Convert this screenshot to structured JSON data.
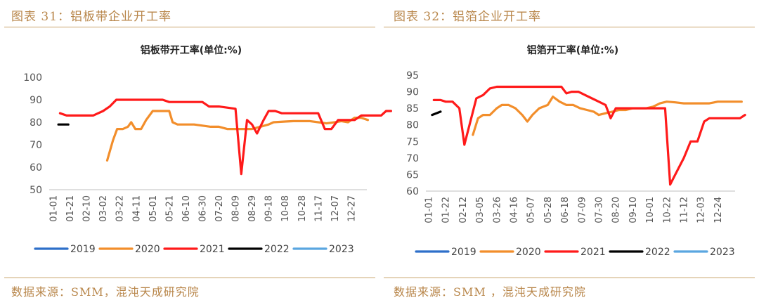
{
  "colors": {
    "2019": "#2e6fc9",
    "2020": "#f28e2b",
    "2021": "#ff1a1a",
    "2022": "#000000",
    "2023": "#5aa6e0",
    "accent": "#b8864a"
  },
  "panels": [
    {
      "figure_title": "图表 31：铝板带企业开工率",
      "source": "数据来源：SMM，混沌天成研究院"
    },
    {
      "figure_title": "图表 32：铝箔企业开工率",
      "source": "数据来源：SMM ，混沌天成研究院"
    }
  ],
  "chart_data": [
    {
      "type": "line",
      "title": "铝板带开工率(单位:%)",
      "ylim": [
        50,
        100
      ],
      "yticks": [
        50,
        60,
        70,
        80,
        90,
        100
      ],
      "categories": [
        "01-01",
        "01-21",
        "02-10",
        "03-02",
        "03-22",
        "04-11",
        "05-01",
        "05-21",
        "06-10",
        "06-30",
        "07-20",
        "08-09",
        "08-29",
        "09-18",
        "10-08",
        "10-28",
        "11-17",
        "12-07",
        "12-27"
      ],
      "legend_position": "bottom",
      "grid": false,
      "series": [
        {
          "name": "2019",
          "points": []
        },
        {
          "name": "2020",
          "points": [
            [
              3.25,
              63
            ],
            [
              3.6,
              72
            ],
            [
              3.85,
              77
            ],
            [
              4.2,
              77
            ],
            [
              4.5,
              78
            ],
            [
              4.7,
              80
            ],
            [
              4.95,
              77
            ],
            [
              5.3,
              77
            ],
            [
              5.6,
              81
            ],
            [
              6.0,
              85
            ],
            [
              6.5,
              85
            ],
            [
              7.0,
              85
            ],
            [
              7.2,
              80
            ],
            [
              7.5,
              79
            ],
            [
              8,
              79
            ],
            [
              8.5,
              79
            ],
            [
              9,
              78.5
            ],
            [
              9.5,
              78
            ],
            [
              10,
              78
            ],
            [
              10.5,
              77
            ],
            [
              11,
              77
            ],
            [
              11.5,
              77
            ],
            [
              12,
              77
            ],
            [
              12.5,
              78
            ],
            [
              13,
              79
            ],
            [
              13.3,
              80
            ],
            [
              14,
              80.3
            ],
            [
              14.5,
              80.5
            ],
            [
              15,
              80.5
            ],
            [
              15.5,
              80.5
            ],
            [
              16,
              80
            ],
            [
              16.5,
              79.5
            ],
            [
              17,
              80
            ],
            [
              17.4,
              80.5
            ],
            [
              17.8,
              80
            ],
            [
              18.2,
              82
            ],
            [
              18.6,
              82
            ],
            [
              19,
              81
            ]
          ]
        },
        {
          "name": "2021",
          "points": [
            [
              0.4,
              84
            ],
            [
              0.8,
              83
            ],
            [
              1.2,
              83
            ],
            [
              1.6,
              83
            ],
            [
              2,
              83
            ],
            [
              2.4,
              83
            ],
            [
              3.0,
              85
            ],
            [
              3.4,
              87
            ],
            [
              3.8,
              90
            ],
            [
              4.2,
              90
            ],
            [
              4.6,
              90
            ],
            [
              5.0,
              90
            ],
            [
              5.4,
              90
            ],
            [
              5.8,
              90
            ],
            [
              6.2,
              90
            ],
            [
              6.6,
              90
            ],
            [
              7.0,
              89
            ],
            [
              7.4,
              89
            ],
            [
              8,
              89
            ],
            [
              8.5,
              89
            ],
            [
              9,
              89
            ],
            [
              9.4,
              87
            ],
            [
              10,
              87
            ],
            [
              10.5,
              86.5
            ],
            [
              11,
              86
            ],
            [
              11.35,
              57
            ],
            [
              11.7,
              81
            ],
            [
              12,
              79
            ],
            [
              12.3,
              75
            ],
            [
              12.7,
              81
            ],
            [
              13,
              85
            ],
            [
              13.4,
              85
            ],
            [
              13.8,
              84
            ],
            [
              14.2,
              84
            ],
            [
              14.6,
              84
            ],
            [
              15,
              84
            ],
            [
              15.5,
              84
            ],
            [
              16,
              84
            ],
            [
              16.4,
              77
            ],
            [
              16.8,
              77
            ],
            [
              17.2,
              81
            ],
            [
              17.6,
              81
            ],
            [
              18,
              81
            ],
            [
              18.2,
              81
            ],
            [
              18.6,
              83
            ],
            [
              19,
              83
            ],
            [
              19.4,
              83
            ],
            [
              19.8,
              83
            ],
            [
              20.1,
              85
            ],
            [
              20.4,
              85
            ]
          ]
        },
        {
          "name": "2022",
          "points": [
            [
              0.3,
              79
            ],
            [
              0.6,
              79
            ],
            [
              0.9,
              79
            ]
          ]
        },
        {
          "name": "2023",
          "points": []
        }
      ]
    },
    {
      "type": "line",
      "title": "铝箔开工率(单位:%)",
      "ylim": [
        60,
        95
      ],
      "yticks": [
        60,
        65,
        70,
        75,
        80,
        85,
        90,
        95
      ],
      "categories": [
        "01-01",
        "01-22",
        "02-12",
        "03-05",
        "03-26",
        "04-16",
        "05-07",
        "05-28",
        "06-18",
        "07-09",
        "07-30",
        "08-20",
        "09-10",
        "10-01",
        "10-22",
        "11-12",
        "12-03",
        "12-24"
      ],
      "legend_position": "bottom",
      "grid": false,
      "series": [
        {
          "name": "2019",
          "points": []
        },
        {
          "name": "2020",
          "points": [
            [
              2.6,
              77
            ],
            [
              2.9,
              82
            ],
            [
              3.2,
              83
            ],
            [
              3.6,
              83
            ],
            [
              4.0,
              85
            ],
            [
              4.3,
              86
            ],
            [
              4.7,
              86
            ],
            [
              5.1,
              85
            ],
            [
              5.5,
              83
            ],
            [
              5.8,
              81
            ],
            [
              6.1,
              83
            ],
            [
              6.5,
              85
            ],
            [
              7.0,
              86
            ],
            [
              7.3,
              88.5
            ],
            [
              7.7,
              87
            ],
            [
              8.1,
              86
            ],
            [
              8.5,
              86
            ],
            [
              8.9,
              85
            ],
            [
              9.3,
              84.5
            ],
            [
              9.7,
              84
            ],
            [
              10.0,
              83
            ],
            [
              10.4,
              83.5
            ],
            [
              10.8,
              84
            ],
            [
              11.2,
              84.5
            ],
            [
              11.6,
              84.5
            ],
            [
              12,
              85
            ],
            [
              12.4,
              85
            ],
            [
              12.8,
              85
            ],
            [
              13.2,
              85.5
            ],
            [
              13.6,
              86.5
            ],
            [
              14.0,
              87
            ],
            [
              14.5,
              86.8
            ],
            [
              15,
              86.5
            ],
            [
              15.5,
              86.5
            ],
            [
              16,
              86.5
            ],
            [
              16.5,
              86.5
            ],
            [
              17,
              87
            ],
            [
              17.5,
              87
            ],
            [
              18,
              87
            ],
            [
              18.4,
              87
            ]
          ]
        },
        {
          "name": "2021",
          "points": [
            [
              0.3,
              87.5
            ],
            [
              0.7,
              87.5
            ],
            [
              1.0,
              87
            ],
            [
              1.4,
              87
            ],
            [
              1.8,
              85
            ],
            [
              2.1,
              74
            ],
            [
              2.4,
              80
            ],
            [
              2.8,
              88
            ],
            [
              3.2,
              89
            ],
            [
              3.6,
              91
            ],
            [
              4,
              91.5
            ],
            [
              4.5,
              91.5
            ],
            [
              5,
              91.5
            ],
            [
              5.5,
              91.5
            ],
            [
              6,
              91.5
            ],
            [
              6.5,
              91.5
            ],
            [
              7,
              91.5
            ],
            [
              7.5,
              91.5
            ],
            [
              7.8,
              91.5
            ],
            [
              8.1,
              89.5
            ],
            [
              8.4,
              90
            ],
            [
              8.8,
              90
            ],
            [
              9.2,
              89
            ],
            [
              9.6,
              88
            ],
            [
              10,
              87
            ],
            [
              10.4,
              86
            ],
            [
              10.7,
              82
            ],
            [
              11,
              85
            ],
            [
              11.5,
              85
            ],
            [
              12,
              85
            ],
            [
              12.5,
              85
            ],
            [
              13,
              85
            ],
            [
              13.5,
              85
            ],
            [
              13.9,
              85
            ],
            [
              14.2,
              62
            ],
            [
              14.6,
              66
            ],
            [
              15.0,
              70
            ],
            [
              15.4,
              75
            ],
            [
              15.8,
              75
            ],
            [
              16.2,
              81
            ],
            [
              16.5,
              82
            ],
            [
              17,
              82
            ],
            [
              17.5,
              82
            ],
            [
              18,
              82
            ],
            [
              18.3,
              82
            ],
            [
              18.6,
              83
            ]
          ]
        },
        {
          "name": "2022",
          "points": [
            [
              0.2,
              83
            ],
            [
              0.45,
              83.5
            ],
            [
              0.7,
              84
            ]
          ]
        },
        {
          "name": "2023",
          "points": []
        }
      ]
    }
  ]
}
